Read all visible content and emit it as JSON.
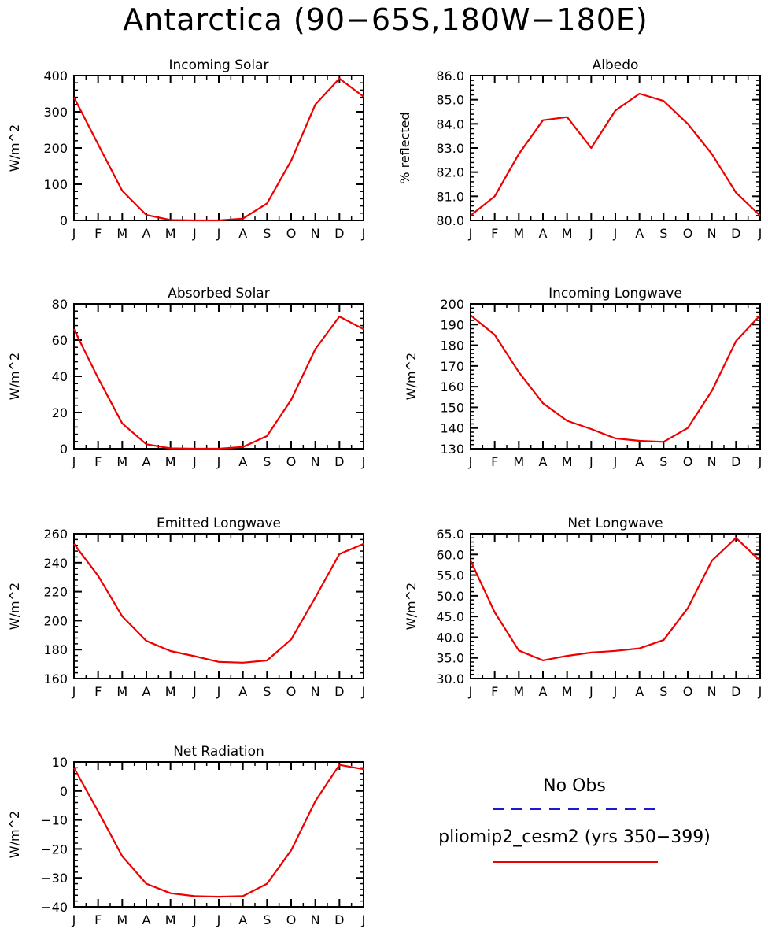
{
  "figure": {
    "title": "Antarctica (90−65S,180W−180E)"
  },
  "colors": {
    "model_line": "#ee0000",
    "obs_line": "#1a1ad6",
    "axis": "#000000"
  },
  "months": [
    "J",
    "F",
    "M",
    "A",
    "M",
    "J",
    "J",
    "A",
    "S",
    "O",
    "N",
    "D",
    "J"
  ],
  "legend": {
    "obs_label": "No Obs",
    "model_label": "pliomip2_cesm2 (yrs 350−399)"
  },
  "chart_data": [
    {
      "id": "incoming-solar",
      "type": "line",
      "title": "Incoming Solar",
      "xlabel": "",
      "ylabel": "W/m^2",
      "ylim": [
        0,
        400
      ],
      "yticks": [
        0,
        100,
        200,
        300,
        400
      ],
      "ytick_labels": [
        "0",
        "100",
        "200",
        "300",
        "400"
      ],
      "minor_step": 20,
      "grid": false,
      "series": [
        {
          "values": [
            340,
            210,
            82,
            15,
            1,
            0,
            0,
            5,
            47,
            165,
            320,
            392,
            342
          ]
        }
      ]
    },
    {
      "id": "albedo",
      "type": "line",
      "title": "Albedo",
      "xlabel": "",
      "ylabel": "% reflected",
      "ylim": [
        80,
        86
      ],
      "yticks": [
        80,
        81,
        82,
        83,
        84,
        85,
        86
      ],
      "ytick_labels": [
        "80.0",
        "81.0",
        "82.0",
        "83.0",
        "84.0",
        "85.0",
        "86.0"
      ],
      "minor_step": 0.2,
      "grid": false,
      "series": [
        {
          "values": [
            80.2,
            81.0,
            82.75,
            84.15,
            84.28,
            83.0,
            84.55,
            85.25,
            84.95,
            84.0,
            82.75,
            81.15,
            80.2
          ]
        }
      ]
    },
    {
      "id": "absorbed-solar",
      "type": "line",
      "title": "Absorbed Solar",
      "xlabel": "",
      "ylabel": "W/m^2",
      "ylim": [
        0,
        80
      ],
      "yticks": [
        0,
        20,
        40,
        60,
        80
      ],
      "ytick_labels": [
        "0",
        "20",
        "40",
        "60",
        "80"
      ],
      "minor_step": 4,
      "grid": false,
      "series": [
        {
          "values": [
            66,
            39,
            14,
            2.5,
            0.2,
            0,
            0,
            1,
            7,
            27,
            55,
            73,
            66
          ]
        }
      ]
    },
    {
      "id": "incoming-longwave",
      "type": "line",
      "title": "Incoming Longwave",
      "xlabel": "",
      "ylabel": "W/m^2",
      "ylim": [
        130,
        200
      ],
      "yticks": [
        130,
        140,
        150,
        160,
        170,
        180,
        190,
        200
      ],
      "ytick_labels": [
        "130",
        "140",
        "150",
        "160",
        "170",
        "180",
        "190",
        "200"
      ],
      "minor_step": 2,
      "grid": false,
      "series": [
        {
          "values": [
            194.5,
            185,
            167,
            152,
            143.5,
            139.5,
            135,
            133.8,
            133.3,
            140,
            158,
            182,
            194.5
          ]
        }
      ]
    },
    {
      "id": "emitted-longwave",
      "type": "line",
      "title": "Emitted Longwave",
      "xlabel": "",
      "ylabel": "W/m^2",
      "ylim": [
        160,
        260
      ],
      "yticks": [
        160,
        180,
        200,
        220,
        240,
        260
      ],
      "ytick_labels": [
        "160",
        "180",
        "200",
        "220",
        "240",
        "260"
      ],
      "minor_step": 4,
      "grid": false,
      "series": [
        {
          "values": [
            253,
            231,
            203,
            186,
            179,
            175.5,
            171.5,
            171,
            172.5,
            187,
            216,
            246,
            253
          ]
        }
      ]
    },
    {
      "id": "net-longwave",
      "type": "line",
      "title": "Net Longwave",
      "xlabel": "",
      "ylabel": "W/m^2",
      "ylim": [
        30,
        65
      ],
      "yticks": [
        30,
        35,
        40,
        45,
        50,
        55,
        60,
        65
      ],
      "ytick_labels": [
        "30.0",
        "35.0",
        "40.0",
        "45.0",
        "50.0",
        "55.0",
        "60.0",
        "65.0"
      ],
      "minor_step": 1,
      "grid": false,
      "series": [
        {
          "values": [
            58.5,
            46,
            36.8,
            34.4,
            35.5,
            36.3,
            36.7,
            37.3,
            39.3,
            47,
            58.5,
            64,
            58.5
          ]
        }
      ]
    },
    {
      "id": "net-radiation",
      "type": "line",
      "title": "Net Radiation",
      "xlabel": "",
      "ylabel": "W/m^2",
      "ylim": [
        -40,
        10
      ],
      "yticks": [
        -40,
        -30,
        -20,
        -10,
        0,
        10
      ],
      "ytick_labels": [
        "−40",
        "−30",
        "−20",
        "−10",
        "0",
        "10"
      ],
      "minor_step": 2,
      "grid": false,
      "series": [
        {
          "values": [
            8,
            -7,
            -22.5,
            -32,
            -35.3,
            -36.3,
            -36.5,
            -36.3,
            -32,
            -20.5,
            -3.5,
            9,
            7.5
          ]
        }
      ]
    }
  ]
}
